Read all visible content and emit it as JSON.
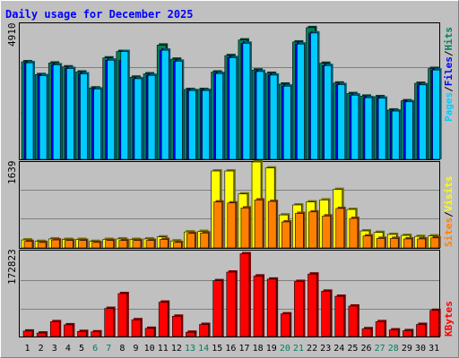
{
  "title": "Daily usage for December 2025",
  "colors": {
    "background": "#c0c0c0",
    "title": "#0000ff",
    "hits": "#00805c",
    "files": "#0000ff",
    "pages": "#00ccff",
    "visits": "#ffff00",
    "sites": "#ff8000",
    "kbytes": "#ff0000",
    "weekend_day": "#00805c",
    "weekday": "#000000",
    "separator": "#000000"
  },
  "legend": {
    "top": {
      "hits": "Hits",
      "files": "Files",
      "pages": "Pages",
      "sep": "/"
    },
    "mid": {
      "visits": "Visits",
      "sites": "Sites",
      "sep": "/"
    },
    "bottom": {
      "kbytes": "KBytes"
    }
  },
  "chart_data": [
    {
      "type": "bar",
      "panel": "hits-files-pages",
      "ylabel_value": "4910",
      "ylim": [
        0,
        5300
      ],
      "categories": [
        "1",
        "2",
        "3",
        "4",
        "5",
        "6",
        "7",
        "8",
        "9",
        "10",
        "11",
        "12",
        "13",
        "14",
        "15",
        "16",
        "17",
        "18",
        "19",
        "20",
        "21",
        "22",
        "23",
        "24",
        "25",
        "26",
        "27",
        "28",
        "29",
        "30",
        "31"
      ],
      "weekend_days": [
        6,
        7,
        13,
        14,
        20,
        21,
        27,
        28
      ],
      "series": [
        {
          "name": "Hits",
          "values": [
            3800,
            3300,
            3750,
            3600,
            3400,
            2780,
            3950,
            4200,
            3200,
            3330,
            4450,
            3900,
            2720,
            2720,
            3400,
            4040,
            4650,
            3480,
            3350,
            2930,
            4570,
            5130,
            3740,
            2970,
            2560,
            2460,
            2440,
            1920,
            2280,
            2960,
            3540
          ]
        },
        {
          "name": "Files",
          "values": [
            3760,
            3260,
            3680,
            3540,
            3330,
            2740,
            3860,
            3850,
            3140,
            3270,
            4250,
            3820,
            2680,
            2680,
            3340,
            3960,
            4520,
            3420,
            3280,
            2850,
            4490,
            4920,
            3650,
            2910,
            2500,
            2400,
            2380,
            1880,
            2240,
            2900,
            3480
          ]
        },
        {
          "name": "Pages",
          "values": [
            3760,
            3260,
            3680,
            3540,
            3330,
            2740,
            3860,
            4200,
            3140,
            3270,
            4250,
            3820,
            2680,
            2680,
            3340,
            3960,
            4520,
            3420,
            3280,
            2850,
            4490,
            4920,
            3650,
            2910,
            2500,
            2400,
            2380,
            1880,
            2240,
            2900,
            3480
          ]
        }
      ]
    },
    {
      "type": "bar",
      "panel": "visits-sites",
      "ylabel_value": "1639",
      "ylim": [
        0,
        1720
      ],
      "categories": [
        "1",
        "2",
        "3",
        "4",
        "5",
        "6",
        "7",
        "8",
        "9",
        "10",
        "11",
        "12",
        "13",
        "14",
        "15",
        "16",
        "17",
        "18",
        "19",
        "20",
        "21",
        "22",
        "23",
        "24",
        "25",
        "26",
        "27",
        "28",
        "29",
        "30",
        "31"
      ],
      "series": [
        {
          "name": "Visits",
          "values": [
            160,
            130,
            180,
            170,
            170,
            130,
            170,
            180,
            170,
            180,
            220,
            140,
            320,
            330,
            1540,
            1540,
            1080,
            1720,
            1600,
            660,
            860,
            920,
            960,
            1170,
            770,
            340,
            310,
            270,
            250,
            230,
            240
          ]
        },
        {
          "name": "Sites",
          "values": [
            130,
            110,
            160,
            150,
            150,
            110,
            150,
            150,
            150,
            150,
            170,
            110,
            290,
            300,
            920,
            900,
            800,
            960,
            930,
            520,
            690,
            720,
            640,
            790,
            590,
            240,
            190,
            190,
            180,
            180,
            200
          ]
        }
      ]
    },
    {
      "type": "bar",
      "panel": "kbytes",
      "ylabel_value": "172823",
      "ylim": [
        0,
        220000
      ],
      "categories": [
        "1",
        "2",
        "3",
        "4",
        "5",
        "6",
        "7",
        "8",
        "9",
        "10",
        "11",
        "12",
        "13",
        "14",
        "15",
        "16",
        "17",
        "18",
        "19",
        "20",
        "21",
        "22",
        "23",
        "24",
        "25",
        "26",
        "27",
        "28",
        "29",
        "30",
        "31"
      ],
      "series": [
        {
          "name": "KBytes",
          "values": [
            14000,
            9000,
            38000,
            30000,
            13000,
            12000,
            72000,
            110000,
            43000,
            21000,
            88000,
            52000,
            11000,
            31000,
            143000,
            165000,
            212000,
            155000,
            147000,
            58000,
            141000,
            160000,
            116000,
            103000,
            78000,
            20000,
            38000,
            17000,
            15000,
            31000,
            67000
          ]
        }
      ]
    }
  ]
}
